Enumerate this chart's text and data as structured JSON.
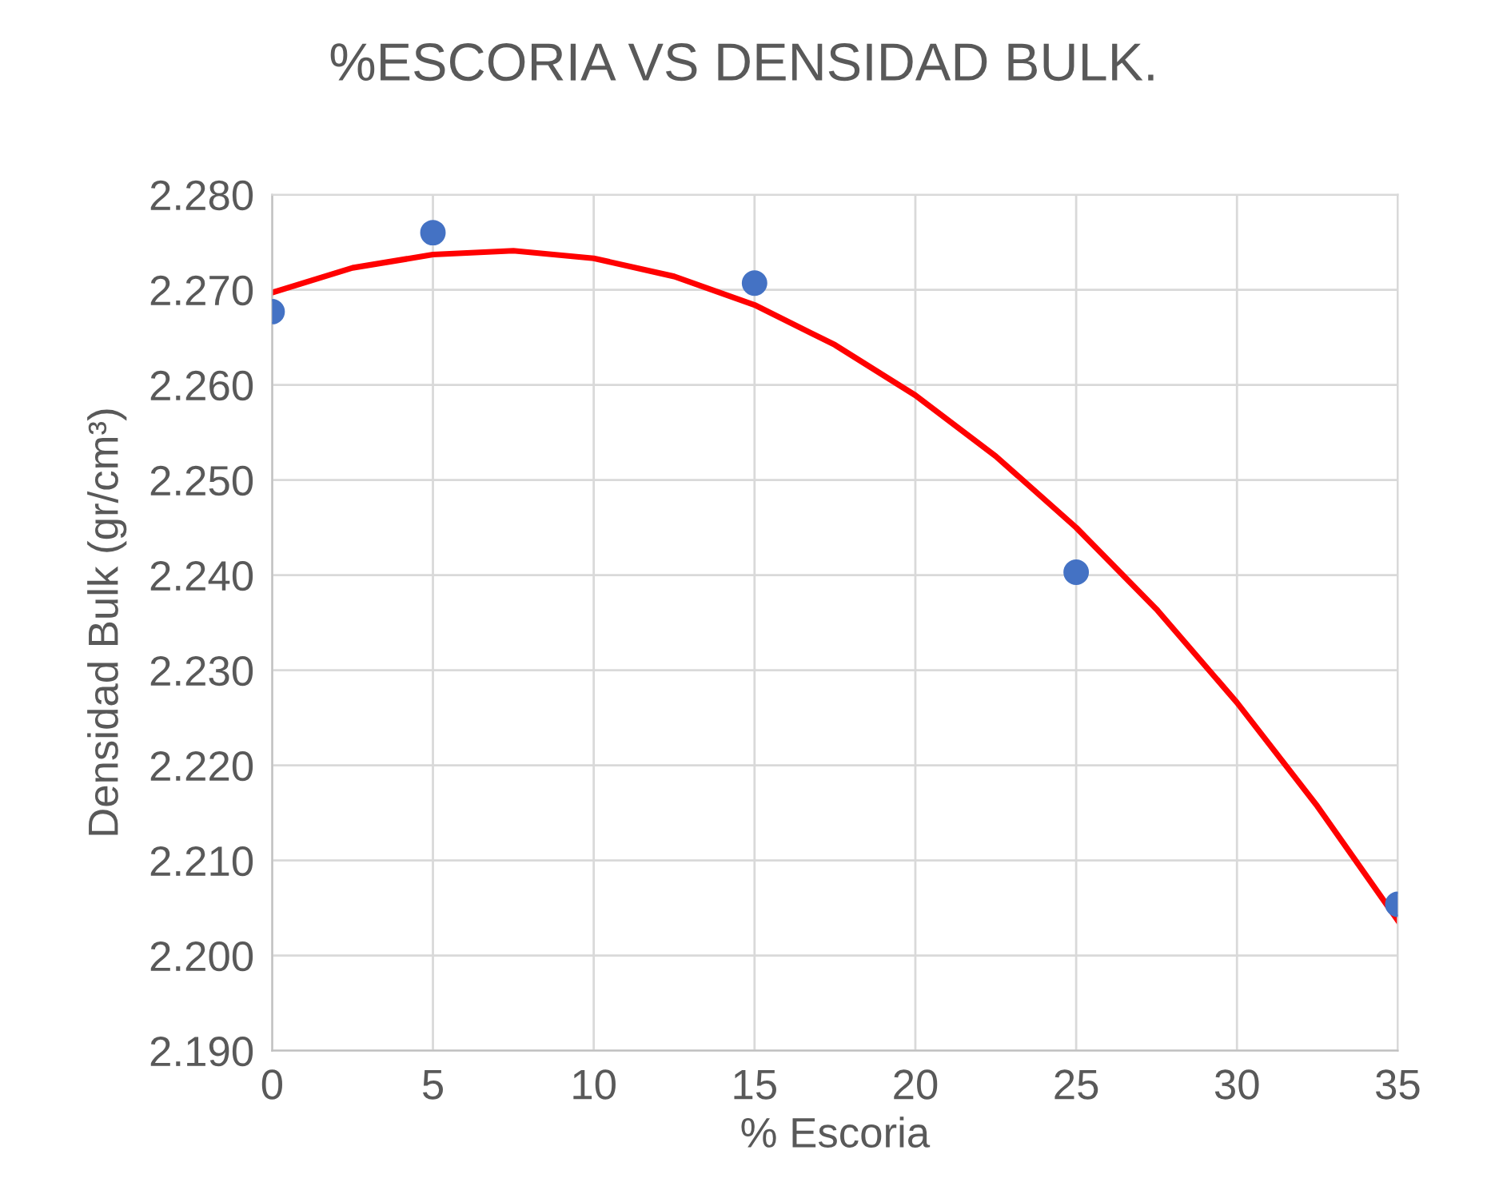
{
  "chart_data": {
    "type": "scatter",
    "title": "%ESCORIA VS DENSIDAD BULK.",
    "xlabel": "% Escoria",
    "ylabel": "Densidad Bulk (gr/cm³)",
    "series": [
      {
        "color": "#4472c4",
        "marker": "circle",
        "x": [
          0,
          5,
          15,
          25,
          35
        ],
        "values": [
          2.2677,
          2.276,
          2.2707,
          2.2403,
          2.2054
        ]
      },
      {
        "type": "line",
        "color": "#ff0000",
        "marker": "none",
        "line_style": "solid",
        "x": [
          0,
          2.5,
          5,
          7.5,
          10,
          12.5,
          15,
          17.5,
          20,
          22.5,
          25,
          27.5,
          30,
          32.5,
          35
        ],
        "values": [
          2.2697,
          2.2723,
          2.2737,
          2.2741,
          2.2733,
          2.2714,
          2.2684,
          2.2642,
          2.2589,
          2.2525,
          2.245,
          2.2364,
          2.2266,
          2.2157,
          2.2037
        ]
      }
    ],
    "xlim": [
      0,
      35
    ],
    "xticks": [
      0,
      5,
      10,
      15,
      20,
      25,
      30,
      35
    ],
    "ylim": [
      2.19,
      2.28
    ],
    "yticks": [
      {
        "value": 2.19,
        "label": "2.190"
      },
      {
        "value": 2.2,
        "label": "2.200"
      },
      {
        "value": 2.21,
        "label": "2.210"
      },
      {
        "value": 2.22,
        "label": "2.220"
      },
      {
        "value": 2.23,
        "label": "2.230"
      },
      {
        "value": 2.24,
        "label": "2.240"
      },
      {
        "value": 2.25,
        "label": "2.250"
      },
      {
        "value": 2.26,
        "label": "2.260"
      },
      {
        "value": 2.27,
        "label": "2.270"
      },
      {
        "value": 2.28,
        "label": "2.280"
      }
    ],
    "grid": true
  }
}
